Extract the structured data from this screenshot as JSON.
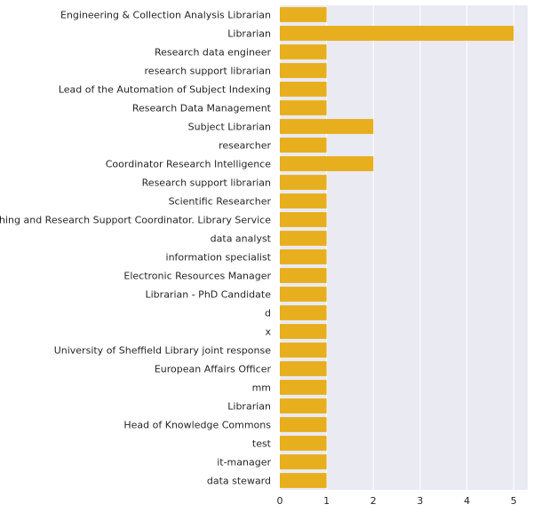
{
  "chart_data": {
    "type": "bar",
    "orientation": "horizontal",
    "title": "",
    "xlabel": "",
    "ylabel": "",
    "xlim": [
      0,
      5.3
    ],
    "x_ticks": [
      "0",
      "1",
      "2",
      "3",
      "4",
      "5"
    ],
    "grid": true,
    "colors": {
      "bar": "#E7AE1D",
      "plot_bg": "#EAEAF2",
      "grid": "#FFFFFF"
    },
    "categories": [
      "Engineering & Collection Analysis Librarian",
      "Librarian",
      "Research data engineer ",
      "research support librarian",
      "Lead of the Automation of Subject Indexing",
      "Research Data Management",
      "Subject Librarian",
      "researcher",
      "Coordinator Research Intelligence",
      "Research support librarian",
      "Scientific Researcher",
      "Teaching and Research Support Coordinator. Library Service",
      "data analyst",
      "information specialist",
      "Electronic Resources Manager",
      "Librarian - PhD Candidate",
      "d",
      "x",
      "University of Sheffield Library joint response",
      "European Affairs Officer",
      "mm",
      "Librarian ",
      "Head of Knowledge Commons",
      "test",
      "it-manager",
      "data steward"
    ],
    "values": [
      1,
      5,
      1,
      1,
      1,
      1,
      2,
      1,
      2,
      1,
      1,
      1,
      1,
      1,
      1,
      1,
      1,
      1,
      1,
      1,
      1,
      1,
      1,
      1,
      1,
      1
    ]
  }
}
